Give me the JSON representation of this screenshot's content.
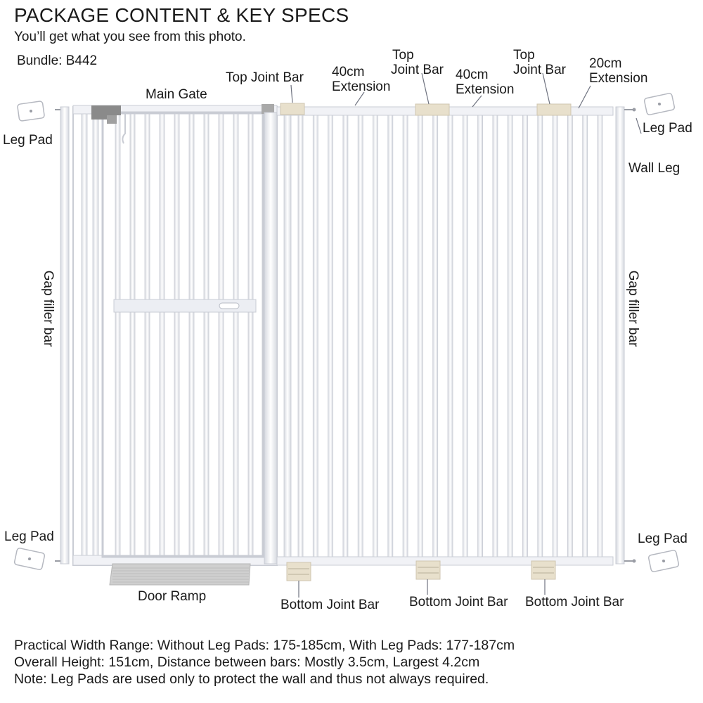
{
  "header": {
    "title": "PACKAGE CONTENT & KEY SPECS",
    "subtitle": "You’ll get what you see from this photo.",
    "bundle": "Bundle: B442"
  },
  "labels": {
    "main_gate": "Main Gate",
    "top_joint_bar_1": "Top Joint Bar",
    "ext40_1": [
      "40cm",
      "Extension"
    ],
    "top_joint_bar_2": [
      "Top",
      "Joint Bar"
    ],
    "ext40_2": [
      "40cm",
      "Extension"
    ],
    "top_joint_bar_3": [
      "Top",
      "Joint Bar"
    ],
    "ext20": [
      "20cm",
      "Extension"
    ],
    "leg_pad": "Leg Pad",
    "wall_leg": "Wall Leg",
    "gap_filler_bar": "Gap filler bar",
    "door_ramp": "Door Ramp",
    "bottom_joint_bar": "Bottom Joint Bar"
  },
  "specs": [
    "Practical Width Range: Without Leg Pads:  175-185cm,  With Leg Pads: 177-187cm",
    "Overall Height: 151cm, Distance between bars: Mostly 3.5cm, Largest 4.2cm",
    "Note: Leg Pads are used only to protect the wall and thus not always required."
  ],
  "colors": {
    "frame": "#f4f5f8",
    "frame_stroke": "#c9ccd4",
    "joint": "#e8e0cc",
    "latch": "#8a8a8a",
    "ramp": "#c8c8c8"
  }
}
